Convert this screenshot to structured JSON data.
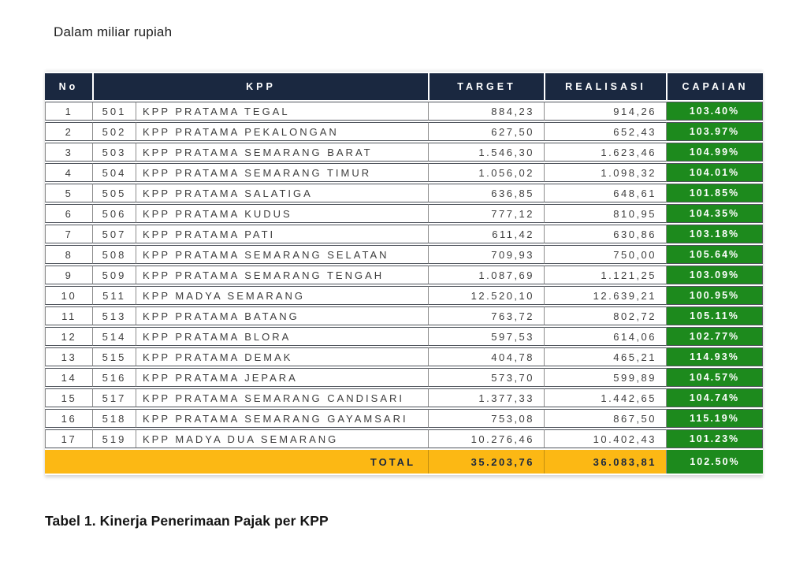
{
  "page": {
    "unit_note": "Dalam miliar rupiah",
    "caption": "Tabel 1. Kinerja Penerimaan Pajak per KPP"
  },
  "colors": {
    "header_bg": "#1a2840",
    "capaian_bg": "#1d8a1d",
    "total_bg": "#fcb814",
    "total_text": "#1a2840"
  },
  "table": {
    "headers": {
      "no": "No",
      "kpp": "KPP",
      "target": "TARGET",
      "realisasi": "REALISASI",
      "capaian": "CAPAIAN"
    },
    "rows": [
      {
        "no": "1",
        "code": "501",
        "name": "KPP PRATAMA TEGAL",
        "target": "884,23",
        "realisasi": "914,26",
        "capaian": "103.40%"
      },
      {
        "no": "2",
        "code": "502",
        "name": "KPP PRATAMA PEKALONGAN",
        "target": "627,50",
        "realisasi": "652,43",
        "capaian": "103.97%"
      },
      {
        "no": "3",
        "code": "503",
        "name": "KPP PRATAMA SEMARANG BARAT",
        "target": "1.546,30",
        "realisasi": "1.623,46",
        "capaian": "104.99%"
      },
      {
        "no": "4",
        "code": "504",
        "name": "KPP PRATAMA SEMARANG TIMUR",
        "target": "1.056,02",
        "realisasi": "1.098,32",
        "capaian": "104.01%"
      },
      {
        "no": "5",
        "code": "505",
        "name": "KPP PRATAMA SALATIGA",
        "target": "636,85",
        "realisasi": "648,61",
        "capaian": "101.85%"
      },
      {
        "no": "6",
        "code": "506",
        "name": "KPP PRATAMA KUDUS",
        "target": "777,12",
        "realisasi": "810,95",
        "capaian": "104.35%"
      },
      {
        "no": "7",
        "code": "507",
        "name": "KPP PRATAMA PATI",
        "target": "611,42",
        "realisasi": "630,86",
        "capaian": "103.18%"
      },
      {
        "no": "8",
        "code": "508",
        "name": "KPP PRATAMA SEMARANG SELATAN",
        "target": "709,93",
        "realisasi": "750,00",
        "capaian": "105.64%"
      },
      {
        "no": "9",
        "code": "509",
        "name": "KPP PRATAMA SEMARANG TENGAH",
        "target": "1.087,69",
        "realisasi": "1.121,25",
        "capaian": "103.09%"
      },
      {
        "no": "10",
        "code": "511",
        "name": "KPP MADYA SEMARANG",
        "target": "12.520,10",
        "realisasi": "12.639,21",
        "capaian": "100.95%"
      },
      {
        "no": "11",
        "code": "513",
        "name": "KPP PRATAMA BATANG",
        "target": "763,72",
        "realisasi": "802,72",
        "capaian": "105.11%"
      },
      {
        "no": "12",
        "code": "514",
        "name": "KPP PRATAMA BLORA",
        "target": "597,53",
        "realisasi": "614,06",
        "capaian": "102.77%"
      },
      {
        "no": "13",
        "code": "515",
        "name": "KPP PRATAMA DEMAK",
        "target": "404,78",
        "realisasi": "465,21",
        "capaian": "114.93%"
      },
      {
        "no": "14",
        "code": "516",
        "name": "KPP PRATAMA JEPARA",
        "target": "573,70",
        "realisasi": "599,89",
        "capaian": "104.57%"
      },
      {
        "no": "15",
        "code": "517",
        "name": "KPP PRATAMA SEMARANG CANDISARI",
        "target": "1.377,33",
        "realisasi": "1.442,65",
        "capaian": "104.74%"
      },
      {
        "no": "16",
        "code": "518",
        "name": "KPP PRATAMA SEMARANG GAYAMSARI",
        "target": "753,08",
        "realisasi": "867,50",
        "capaian": "115.19%"
      },
      {
        "no": "17",
        "code": "519",
        "name": "KPP MADYA DUA SEMARANG",
        "target": "10.276,46",
        "realisasi": "10.402,43",
        "capaian": "101.23%"
      }
    ],
    "total": {
      "label": "TOTAL",
      "target": "35.203,76",
      "realisasi": "36.083,81",
      "capaian": "102.50%"
    }
  }
}
